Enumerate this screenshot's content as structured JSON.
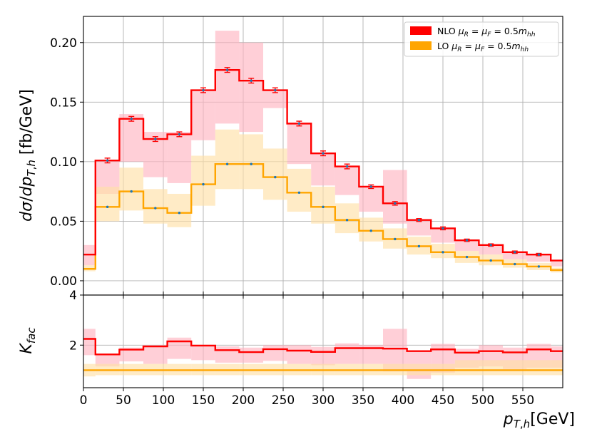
{
  "chart_data": {
    "type": "histogram-step",
    "bin_edges": [
      0,
      15,
      45,
      75,
      105,
      135,
      165,
      195,
      225,
      255,
      285,
      315,
      345,
      375,
      405,
      435,
      465,
      495,
      525,
      555,
      585,
      600
    ],
    "bin_centers": [
      7.5,
      30,
      60,
      90,
      120,
      150,
      180,
      210,
      240,
      270,
      300,
      330,
      360,
      390,
      420,
      450,
      480,
      510,
      540,
      570,
      592.5
    ],
    "top_panel": {
      "ylabel": "dσ/dp_{T,h} [fb/GeV]",
      "ylim": [
        -0.012,
        0.222
      ],
      "yticks": [
        0.0,
        0.05,
        0.1,
        0.15,
        0.2
      ],
      "ytick_labels": [
        "0.00",
        "0.05",
        "0.10",
        "0.15",
        "0.20"
      ],
      "series": [
        {
          "name": "NLO μ_R = μ_F = 0.5m_hh",
          "color": "#ff0000",
          "band_color": "#ffb6c1",
          "values": [
            0.022,
            0.101,
            0.136,
            0.119,
            0.123,
            0.16,
            0.177,
            0.168,
            0.16,
            0.132,
            0.107,
            0.096,
            0.079,
            0.065,
            0.051,
            0.044,
            0.034,
            0.03,
            0.024,
            0.022,
            0.017
          ],
          "errors": [
            0.002,
            0.002,
            0.002,
            0.002,
            0.002,
            0.002,
            0.002,
            0.002,
            0.002,
            0.002,
            0.002,
            0.002,
            0.0015,
            0.0015,
            0.0012,
            0.0012,
            0.001,
            0.001,
            0.001,
            0.001,
            0.001
          ],
          "band_low": [
            0.013,
            0.073,
            0.1,
            0.087,
            0.082,
            0.118,
            0.132,
            0.125,
            0.145,
            0.098,
            0.08,
            0.072,
            0.058,
            0.048,
            0.038,
            0.032,
            0.025,
            0.022,
            0.018,
            0.016,
            0.012
          ],
          "band_high": [
            0.03,
            0.101,
            0.14,
            0.125,
            0.125,
            0.16,
            0.21,
            0.2,
            0.16,
            0.132,
            0.107,
            0.096,
            0.079,
            0.093,
            0.051,
            0.044,
            0.034,
            0.03,
            0.024,
            0.022,
            0.017
          ]
        },
        {
          "name": "LO μ_R = μ_F = 0.5m_hh",
          "color": "#ffa500",
          "band_color": "#ffe0a8",
          "values": [
            0.01,
            0.062,
            0.075,
            0.061,
            0.057,
            0.081,
            0.098,
            0.098,
            0.087,
            0.074,
            0.062,
            0.051,
            0.042,
            0.035,
            0.029,
            0.024,
            0.02,
            0.017,
            0.014,
            0.012,
            0.009
          ],
          "band_low": [
            0.008,
            0.05,
            0.059,
            0.048,
            0.045,
            0.063,
            0.077,
            0.077,
            0.068,
            0.058,
            0.048,
            0.04,
            0.033,
            0.027,
            0.022,
            0.019,
            0.015,
            0.013,
            0.011,
            0.009,
            0.007
          ],
          "band_high": [
            0.013,
            0.079,
            0.095,
            0.077,
            0.073,
            0.105,
            0.127,
            0.123,
            0.111,
            0.094,
            0.079,
            0.065,
            0.053,
            0.044,
            0.037,
            0.031,
            0.025,
            0.022,
            0.018,
            0.015,
            0.011
          ]
        }
      ]
    },
    "bottom_panel": {
      "ylabel": "K_fac",
      "ylim": [
        0.3,
        4.0
      ],
      "yticks": [
        2,
        4
      ],
      "ytick_labels": [
        "2",
        "4"
      ],
      "series": [
        {
          "name": "NLO",
          "color": "#ff0000",
          "band_color": "#ffb6c1",
          "values": [
            2.25,
            1.63,
            1.82,
            1.95,
            2.15,
            1.98,
            1.8,
            1.72,
            1.84,
            1.78,
            1.73,
            1.88,
            1.88,
            1.86,
            1.76,
            1.83,
            1.7,
            1.76,
            1.71,
            1.83,
            1.76
          ],
          "band_low": [
            1.6,
            1.15,
            1.35,
            1.25,
            1.45,
            1.4,
            1.3,
            1.3,
            1.37,
            1.25,
            1.2,
            1.25,
            1.25,
            0.95,
            0.65,
            0.9,
            1.1,
            1.15,
            1.05,
            1.1,
            1.1
          ],
          "band_high": [
            2.65,
            1.63,
            1.9,
            2.0,
            2.3,
            2.0,
            1.95,
            1.9,
            2.0,
            2.0,
            1.93,
            2.07,
            2.0,
            2.65,
            1.76,
            2.05,
            1.85,
            2.0,
            1.9,
            2.05,
            1.95
          ]
        },
        {
          "name": "LO",
          "color": "#ffa500",
          "band_color": "#ffe0a8",
          "values": [
            1.0,
            1.0,
            1.0,
            1.0,
            1.0,
            1.0,
            1.0,
            1.0,
            1.0,
            1.0,
            1.0,
            1.0,
            1.0,
            1.0,
            1.0,
            1.0,
            1.0,
            1.0,
            1.0,
            1.0,
            1.0
          ],
          "band_low": [
            0.75,
            0.8,
            0.8,
            0.8,
            0.8,
            0.8,
            0.8,
            0.8,
            0.8,
            0.8,
            0.8,
            0.8,
            0.8,
            0.8,
            0.8,
            0.8,
            0.8,
            0.8,
            0.8,
            0.8,
            0.8
          ],
          "band_high": [
            1.25,
            1.25,
            1.25,
            1.25,
            1.25,
            1.25,
            1.25,
            1.25,
            1.25,
            1.25,
            1.25,
            1.25,
            1.25,
            1.25,
            1.25,
            1.25,
            1.4,
            1.4,
            1.4,
            1.4,
            1.4
          ]
        }
      ]
    },
    "x_axis": {
      "label": "p_{T,h}[GeV]",
      "xlim": [
        0,
        600
      ],
      "xticks": [
        0,
        50,
        100,
        150,
        200,
        250,
        300,
        350,
        400,
        450,
        500,
        550
      ],
      "xtick_labels": [
        "0",
        "50",
        "100",
        "150",
        "200",
        "250",
        "300",
        "350",
        "400",
        "450",
        "500",
        "550"
      ]
    },
    "grid": true,
    "legend": {
      "placement": "top-right",
      "entries": [
        {
          "label": "NLO",
          "math": "μ_R = μ_F = 0.5m_hh",
          "color": "#ff0000"
        },
        {
          "label": "LO",
          "math": "μ_R = μ_F = 0.5m_hh",
          "color": "#ffa500"
        }
      ]
    }
  }
}
